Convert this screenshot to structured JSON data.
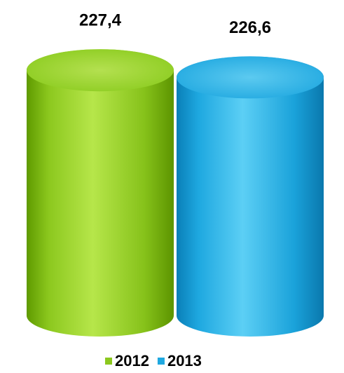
{
  "chart_data": {
    "type": "bar",
    "categories": [
      null
    ],
    "series": [
      {
        "name": "2012",
        "color": "#8cc81e",
        "values": [
          227.4
        ],
        "value_labels": [
          "227,4"
        ]
      },
      {
        "name": "2013",
        "color": "#1ea8e0",
        "values": [
          226.6
        ],
        "value_labels": [
          "226,6"
        ]
      }
    ],
    "ylim": [
      200,
      230
    ],
    "legend": "bottom"
  }
}
